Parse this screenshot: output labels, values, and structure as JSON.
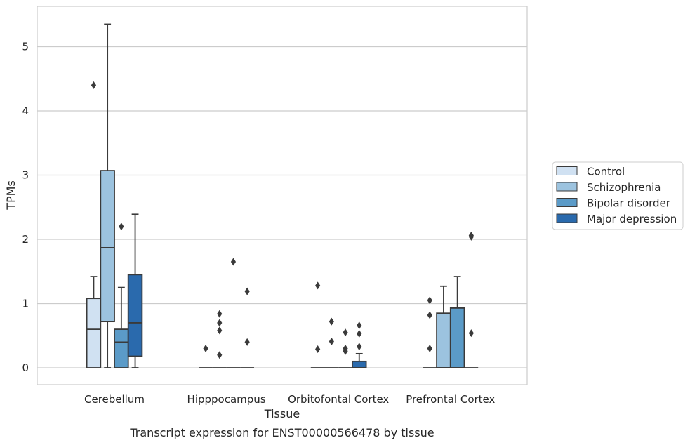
{
  "chart_data": {
    "type": "box",
    "xlabel": "Tissue",
    "ylabel": "TPMs",
    "caption": "Transcript expression for ENST00000566478 by tissue",
    "ylim": [
      -0.25,
      5.62
    ],
    "yticks": [
      "0",
      "1",
      "2",
      "3",
      "4",
      "5"
    ],
    "grid": "horizontal",
    "legend_position": "right",
    "categories": [
      "Cerebellum",
      "Hipppocampus",
      "Orbitofontal Cortex",
      "Prefrontal Cortex"
    ],
    "series": [
      {
        "name": "Control",
        "color": "#d0e1f2",
        "boxes": [
          {
            "q1": 0,
            "median": 0.6,
            "q3": 1.08,
            "whisker_low": 0,
            "whisker_high": 1.42,
            "outliers": [
              4.4
            ]
          },
          {
            "q1": 0,
            "median": 0,
            "q3": 0,
            "whisker_low": 0,
            "whisker_high": 0,
            "outliers": [
              0.3
            ]
          },
          {
            "q1": 0,
            "median": 0,
            "q3": 0,
            "whisker_low": 0,
            "whisker_high": 0,
            "outliers": [
              1.28,
              0.29
            ]
          },
          {
            "q1": 0,
            "median": 0,
            "q3": 0,
            "whisker_low": 0,
            "whisker_high": 0,
            "outliers": [
              1.05,
              0.82,
              0.3
            ]
          }
        ]
      },
      {
        "name": "Schizophrenia",
        "color": "#9cc3df",
        "boxes": [
          {
            "q1": 0.72,
            "median": 1.87,
            "q3": 3.07,
            "whisker_low": 0,
            "whisker_high": 5.35,
            "outliers": []
          },
          {
            "q1": 0,
            "median": 0,
            "q3": 0,
            "whisker_low": 0,
            "whisker_high": 0,
            "outliers": [
              0.84,
              0.7,
              0.58,
              0.2
            ]
          },
          {
            "q1": 0,
            "median": 0,
            "q3": 0,
            "whisker_low": 0,
            "whisker_high": 0,
            "outliers": [
              0.72,
              0.41
            ]
          },
          {
            "q1": 0,
            "median": 0,
            "q3": 0.85,
            "whisker_low": 0,
            "whisker_high": 1.27,
            "outliers": []
          }
        ]
      },
      {
        "name": "Bipolar disorder",
        "color": "#5b9bc8",
        "boxes": [
          {
            "q1": 0,
            "median": 0.4,
            "q3": 0.6,
            "whisker_low": 0,
            "whisker_high": 1.25,
            "outliers": [
              2.2
            ]
          },
          {
            "q1": 0,
            "median": 0,
            "q3": 0,
            "whisker_low": 0,
            "whisker_high": 0,
            "outliers": [
              1.65
            ]
          },
          {
            "q1": 0,
            "median": 0,
            "q3": 0,
            "whisker_low": 0,
            "whisker_high": 0,
            "outliers": [
              0.55,
              0.3,
              0.26
            ]
          },
          {
            "q1": 0,
            "median": 0,
            "q3": 0.93,
            "whisker_low": 0,
            "whisker_high": 1.42,
            "outliers": []
          }
        ]
      },
      {
        "name": "Major depression",
        "color": "#2a6aad",
        "boxes": [
          {
            "q1": 0.18,
            "median": 0.7,
            "q3": 1.45,
            "whisker_low": 0,
            "whisker_high": 2.39,
            "outliers": []
          },
          {
            "q1": 0,
            "median": 0,
            "q3": 0,
            "whisker_low": 0,
            "whisker_high": 0,
            "outliers": [
              1.19,
              0.4
            ]
          },
          {
            "q1": 0,
            "median": 0,
            "q3": 0.1,
            "whisker_low": 0,
            "whisker_high": 0.22,
            "outliers": [
              0.66,
              0.53,
              0.33
            ]
          },
          {
            "q1": 0,
            "median": 0,
            "q3": 0,
            "whisker_low": 0,
            "whisker_high": 0,
            "outliers": [
              2.06,
              2.04,
              0.54
            ]
          }
        ]
      }
    ]
  }
}
